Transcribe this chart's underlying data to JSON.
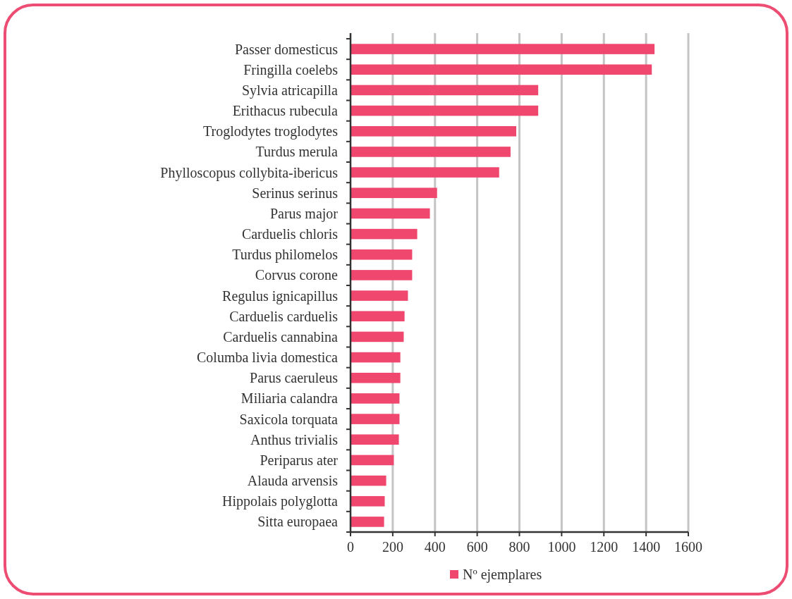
{
  "chart_data": {
    "type": "bar",
    "orientation": "horizontal",
    "categories": [
      "Passer domesticus",
      "Fringilla coelebs",
      "Sylvia atricapilla",
      "Erithacus rubecula",
      "Troglodytes troglodytes",
      "Turdus merula",
      "Phylloscopus collybita-ibericus",
      "Serinus serinus",
      "Parus major",
      "Carduelis chloris",
      "Turdus philomelos",
      "Corvus corone",
      "Regulus ignicapillus",
      "Carduelis carduelis",
      "Carduelis cannabina",
      "Columba livia domestica",
      "Parus caeruleus",
      "Miliaria calandra",
      "Saxicola torquata",
      "Anthus trivialis",
      "Periparus ater",
      "Alauda arvensis",
      "Hippolais polyglotta",
      "Sitta europaea"
    ],
    "series": [
      {
        "name": "Nº ejemplares",
        "color": "#f0476f",
        "values": [
          1440,
          1427,
          889,
          889,
          785,
          758,
          704,
          410,
          376,
          316,
          292,
          292,
          272,
          256,
          252,
          236,
          236,
          232,
          232,
          229,
          205,
          169,
          162,
          159
        ]
      }
    ],
    "xlim": [
      0,
      1600
    ],
    "xticks": [
      0,
      200,
      400,
      600,
      800,
      1000,
      1200,
      1400,
      1600
    ],
    "grid": "x",
    "legend": "bottom"
  }
}
